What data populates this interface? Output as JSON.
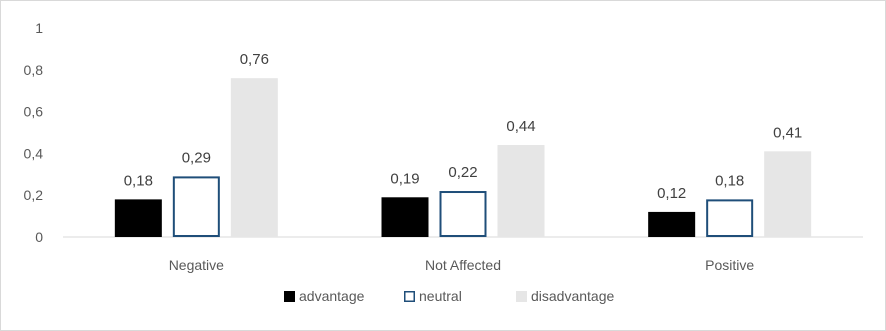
{
  "chart_data": {
    "type": "bar",
    "categories": [
      "Negative",
      "Not Affected",
      "Positive"
    ],
    "series": [
      {
        "name": "advantage",
        "values": [
          0.18,
          0.19,
          0.12
        ],
        "labels": [
          "0,18",
          "0,19",
          "0,12"
        ],
        "fill": "#000000",
        "stroke": "#000000"
      },
      {
        "name": "neutral",
        "values": [
          0.29,
          0.22,
          0.18
        ],
        "labels": [
          "0,29",
          "0,22",
          "0,18"
        ],
        "fill": "#ffffff",
        "stroke": "#1f4e79"
      },
      {
        "name": "disadvantage",
        "values": [
          0.76,
          0.44,
          0.41
        ],
        "labels": [
          "0,76",
          "0,44",
          "0,41"
        ],
        "fill": "#e6e6e6",
        "stroke": "#e6e6e6"
      }
    ],
    "yticks": [
      {
        "value": 0,
        "label": "0"
      },
      {
        "value": 0.2,
        "label": "0,2"
      },
      {
        "value": 0.4,
        "label": "0,4"
      },
      {
        "value": 0.6,
        "label": "0,6"
      },
      {
        "value": 0.8,
        "label": "0,8"
      },
      {
        "value": 1,
        "label": "1"
      }
    ],
    "ylim": [
      0,
      1
    ],
    "grid": false,
    "legend_position": "bottom"
  }
}
